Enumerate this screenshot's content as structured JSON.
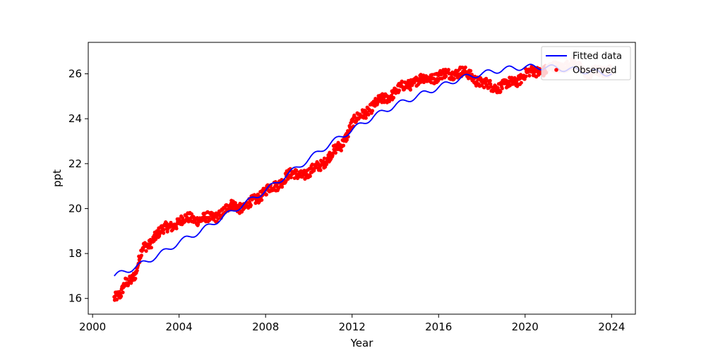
{
  "chart_data": {
    "type": "line",
    "title": "",
    "xlabel": "Year",
    "ylabel": "ppt",
    "xlim": [
      1999.8,
      2025.1
    ],
    "ylim": [
      15.3,
      27.4
    ],
    "xticks": [
      2000,
      2004,
      2008,
      2012,
      2016,
      2020,
      2024
    ],
    "yticks": [
      16,
      18,
      20,
      22,
      24,
      26
    ],
    "grid": false,
    "legend": {
      "position": "top-right"
    },
    "series": [
      {
        "name": "Fitted data",
        "kind": "line",
        "color": "#0000ff",
        "seasonal_amplitude": 0.12,
        "x": [
          2001.0,
          2002.0,
          2003.0,
          2004.0,
          2005.0,
          2006.0,
          2007.0,
          2008.0,
          2009.0,
          2010.0,
          2011.0,
          2012.0,
          2013.0,
          2014.0,
          2015.0,
          2016.0,
          2017.0,
          2018.0,
          2019.0,
          2020.0,
          2021.0,
          2022.0,
          2023.0,
          2024.0
        ],
        "values": [
          17.0,
          17.4,
          17.9,
          18.5,
          19.0,
          19.6,
          20.2,
          20.8,
          21.5,
          22.2,
          22.9,
          23.5,
          24.1,
          24.6,
          25.0,
          25.4,
          25.8,
          26.0,
          26.2,
          26.3,
          26.3,
          26.2,
          26.1,
          26.0
        ]
      },
      {
        "name": "Observed",
        "kind": "scatter",
        "color": "#ff0000",
        "faded_from": 2021.0,
        "faded_color": "#ffc8c8",
        "x": [
          2001.0,
          2001.3,
          2001.5,
          2001.8,
          2002.0,
          2002.3,
          2002.6,
          2002.9,
          2003.2,
          2003.5,
          2003.8,
          2004.0,
          2004.5,
          2005.0,
          2005.5,
          2006.0,
          2006.5,
          2007.0,
          2007.5,
          2008.0,
          2008.5,
          2009.0,
          2009.5,
          2010.0,
          2010.5,
          2011.0,
          2011.5,
          2012.0,
          2012.5,
          2013.0,
          2013.5,
          2014.0,
          2014.5,
          2015.0,
          2015.5,
          2016.0,
          2016.5,
          2017.0,
          2017.5,
          2018.0,
          2018.5,
          2019.0,
          2019.5,
          2020.0,
          2020.5,
          2021.0,
          2021.5,
          2022.0,
          2022.5,
          2023.0,
          2023.5,
          2024.0
        ],
        "values": [
          16.0,
          16.1,
          16.7,
          16.9,
          17.1,
          18.2,
          18.4,
          18.8,
          19.0,
          19.2,
          19.3,
          19.4,
          19.6,
          19.5,
          19.6,
          19.8,
          20.2,
          20.0,
          20.4,
          20.8,
          21.0,
          21.5,
          21.5,
          21.6,
          21.9,
          22.4,
          22.8,
          23.8,
          24.2,
          24.6,
          24.9,
          25.2,
          25.5,
          25.7,
          25.8,
          25.9,
          26.0,
          26.1,
          25.9,
          25.6,
          25.4,
          25.5,
          25.6,
          26.0,
          26.1,
          26.2,
          26.3,
          26.4,
          26.3,
          26.0,
          26.1,
          26.2
        ]
      }
    ]
  }
}
